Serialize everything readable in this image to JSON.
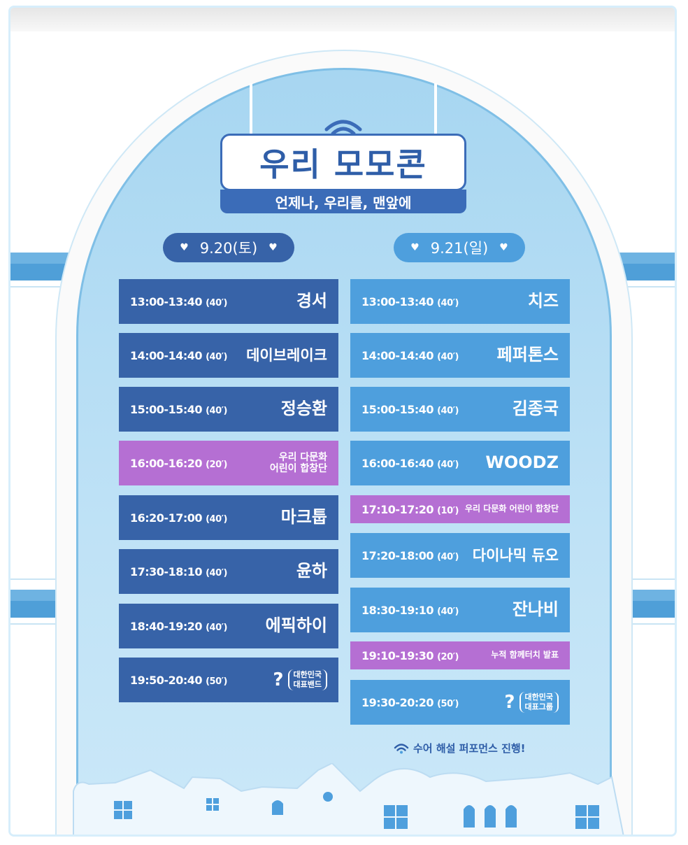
{
  "logo": {
    "title": "우리 모모콘",
    "subtitle": "언제나, 우리를, 맨앞에"
  },
  "days": [
    {
      "label": "9.20(토)",
      "slots": [
        {
          "time": "13:00-13:40",
          "dur": "(40′)",
          "artist": "경서",
          "kind": "main"
        },
        {
          "time": "14:00-14:40",
          "dur": "(40′)",
          "artist": "데이브레이크",
          "kind": "main"
        },
        {
          "time": "15:00-15:40",
          "dur": "(40′)",
          "artist": "정승환",
          "kind": "main"
        },
        {
          "time": "16:00-16:20",
          "dur": "(20′)",
          "artist": "우리 다문화\n어린이 합창단",
          "kind": "special"
        },
        {
          "time": "16:20-17:00",
          "dur": "(40′)",
          "artist": "마크툽",
          "kind": "main"
        },
        {
          "time": "17:30-18:10",
          "dur": "(40′)",
          "artist": "윤하",
          "kind": "main"
        },
        {
          "time": "18:40-19:20",
          "dur": "(40′)",
          "artist": "에픽하이",
          "kind": "main"
        },
        {
          "time": "19:50-20:40",
          "dur": "(50′)",
          "artist": "?",
          "paren": "대한민국\n대표밴드",
          "kind": "main"
        }
      ]
    },
    {
      "label": "9.21(일)",
      "slots": [
        {
          "time": "13:00-13:40",
          "dur": "(40′)",
          "artist": "치즈",
          "kind": "main"
        },
        {
          "time": "14:00-14:40",
          "dur": "(40′)",
          "artist": "페퍼톤스",
          "kind": "main"
        },
        {
          "time": "15:00-15:40",
          "dur": "(40′)",
          "artist": "김종국",
          "kind": "main"
        },
        {
          "time": "16:00-16:40",
          "dur": "(40′)",
          "artist": "WOODZ",
          "kind": "main"
        },
        {
          "time": "17:10-17:20",
          "dur": "(10′)",
          "artist": "우리 다문화 어린이 합창단",
          "kind": "special"
        },
        {
          "time": "17:20-18:00",
          "dur": "(40′)",
          "artist": "다이나믹 듀오",
          "kind": "main"
        },
        {
          "time": "18:30-19:10",
          "dur": "(40′)",
          "artist": "잔나비",
          "kind": "main"
        },
        {
          "time": "19:10-19:30",
          "dur": "(20′)",
          "artist": "누적 함께터치 발표",
          "kind": "special"
        },
        {
          "time": "19:30-20:20",
          "dur": "(50′)",
          "artist": "?",
          "paren": "대한민국\n대표그룹",
          "kind": "main"
        }
      ]
    }
  ],
  "notice": "수어 해설 퍼포먼스 진행!",
  "colors": {
    "day1_block": "#3763a8",
    "day2_block": "#4e9fdd",
    "special_block": "#b56fd3",
    "arch_sky": "#a7d6f1"
  }
}
